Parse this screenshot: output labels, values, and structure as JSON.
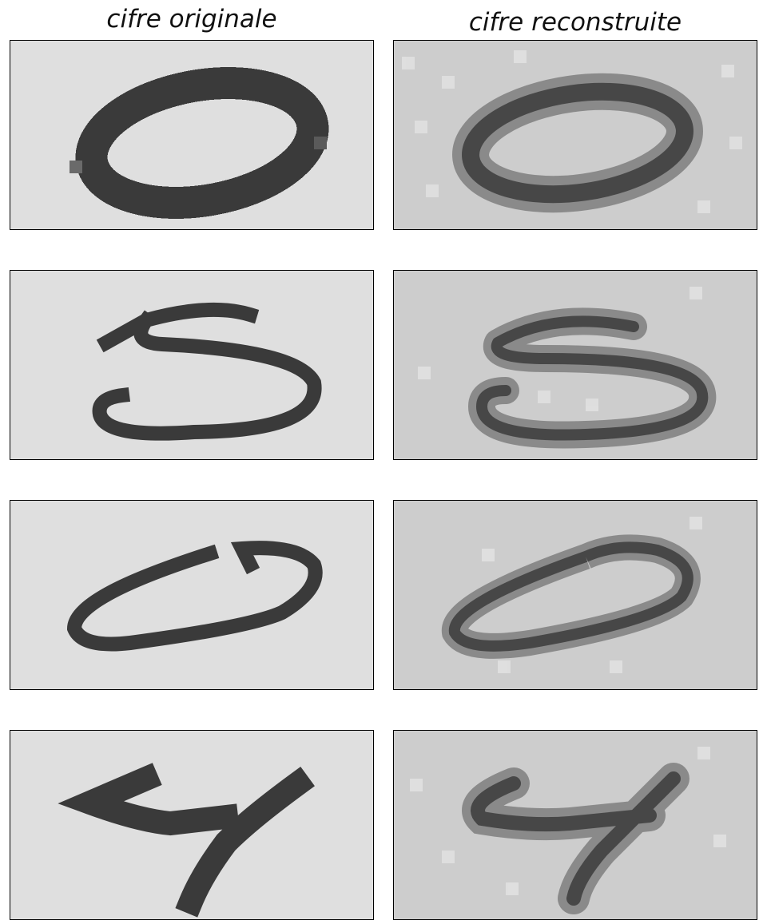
{
  "headers": {
    "original": "cifre originale",
    "reconstructed": "cifre reconstruite"
  },
  "colors": {
    "original_background": "#dfdfdf",
    "original_ink": "#3a3a3a",
    "reconstructed_background": "#cdcdcd",
    "reconstructed_ink": "#474747"
  },
  "digit_rows": [
    {
      "digit": "0"
    },
    {
      "digit": "5"
    },
    {
      "digit": "0"
    },
    {
      "digit": "4"
    }
  ]
}
